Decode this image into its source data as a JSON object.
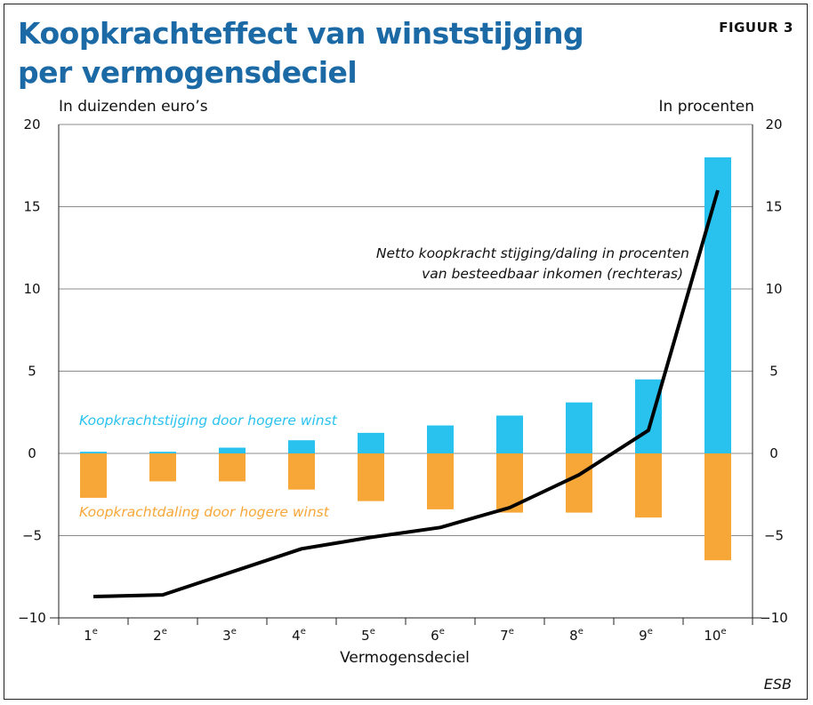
{
  "figure": {
    "title": "Koopkrachteffect van winststijging per vermogensdeciel",
    "label": "FIGUUR 3",
    "source": "ESB"
  },
  "colors": {
    "title": "#1b6aa6",
    "positive": "#29c2ef",
    "negative": "#f7a738",
    "line": "#000000",
    "grid": "#8c8c8c"
  },
  "chart_data": {
    "type": "bar",
    "title": "Koopkrachteffect van winststijging per vermogensdeciel",
    "xlabel": "Vermogensdeciel",
    "ylabel_left": "In duizenden euro’s",
    "ylabel_right": "In procenten",
    "ylim": [
      -10,
      20
    ],
    "yticks": [
      -10,
      -5,
      0,
      5,
      10,
      15,
      20
    ],
    "ytick_labels": [
      "−10",
      "−5",
      "0",
      "5",
      "10",
      "15",
      "20"
    ],
    "categories": [
      {
        "num": "1",
        "sup": "e"
      },
      {
        "num": "2",
        "sup": "e"
      },
      {
        "num": "3",
        "sup": "e"
      },
      {
        "num": "4",
        "sup": "e"
      },
      {
        "num": "5",
        "sup": "e"
      },
      {
        "num": "6",
        "sup": "e"
      },
      {
        "num": "7",
        "sup": "e"
      },
      {
        "num": "8",
        "sup": "e"
      },
      {
        "num": "9",
        "sup": "e"
      },
      {
        "num": "10",
        "sup": "e"
      }
    ],
    "series": [
      {
        "name": "Koopkrachtstijging door hogere winst",
        "kind": "bar",
        "axis": "left",
        "values": [
          0.1,
          0.1,
          0.35,
          0.8,
          1.25,
          1.7,
          2.3,
          3.1,
          4.5,
          18.0
        ]
      },
      {
        "name": "Koopkrachtdaling door hogere winst",
        "kind": "bar",
        "axis": "left",
        "values": [
          -2.7,
          -1.7,
          -1.7,
          -2.2,
          -2.9,
          -3.4,
          -3.6,
          -3.6,
          -3.9,
          -6.5
        ]
      },
      {
        "name": "Netto koopkracht stijging/daling in procenten van besteedbaar inkomen (rechteras)",
        "kind": "line",
        "axis": "right",
        "values": [
          -8.7,
          -8.6,
          -7.2,
          -5.8,
          -5.1,
          -4.5,
          -3.3,
          -1.3,
          1.4,
          16.0
        ]
      }
    ],
    "annotations": {
      "line_line1": "Netto koopkracht stijging/daling in procenten",
      "line_line2": "van besteedbaar inkomen (rechteras)",
      "positive_label": "Koopkrachtstijging door hogere winst",
      "negative_label": "Koopkrachtdaling door hogere winst"
    }
  }
}
